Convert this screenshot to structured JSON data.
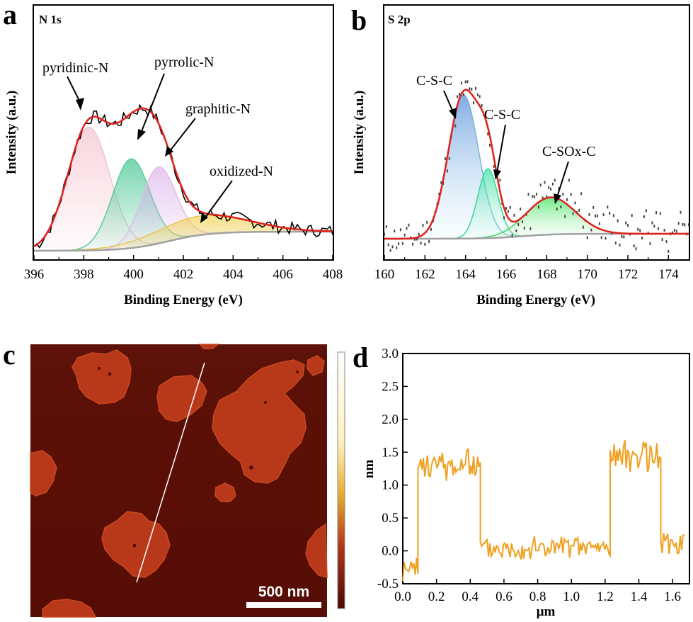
{
  "panels": {
    "a": "a",
    "b": "b",
    "c": "c",
    "d": "d"
  },
  "colors": {
    "fit": "#e0201c",
    "raw": "#000000",
    "pyridinic": "#f2b8c6",
    "pyrrolic": "#3cc48c",
    "graphitic": "#d7a8e8",
    "oxidized": "#f0d050",
    "baseline": "#a0a0a0",
    "s_css1": "#6aa6e0",
    "s_css2": "#3fe0a0",
    "s_csox": "#3fe060",
    "profile": "#f0a020",
    "afm_bg": "#5a0f06",
    "afm_island": "#b8381a"
  },
  "chart_data": [
    {
      "id": "a",
      "type": "line",
      "title": "N 1s",
      "xlabel": "Binding Energy (eV)",
      "ylabel": "Intensity (a.u.)",
      "xlim": [
        396,
        408
      ],
      "ylim": [
        0,
        1
      ],
      "xticks": [
        "396",
        "398",
        "400",
        "402",
        "404",
        "406",
        "408"
      ],
      "series": [
        {
          "name": "pyridinic-N",
          "center": 398.2,
          "amplitude": 0.58,
          "width": 0.85
        },
        {
          "name": "pyrrolic-N",
          "center": 399.9,
          "amplitude": 0.42,
          "width": 0.75
        },
        {
          "name": "graphitic-N",
          "center": 401.0,
          "amplitude": 0.36,
          "width": 0.7
        },
        {
          "name": "oxidized-N",
          "center": 402.7,
          "amplitude": 0.09,
          "width": 1.9
        }
      ],
      "baseline": {
        "start": 0.02,
        "end": 0.11
      },
      "annotations": [
        "pyridinic-N",
        "pyrrolic-N",
        "graphitic-N",
        "oxidized-N"
      ]
    },
    {
      "id": "b",
      "type": "line",
      "title": "S 2p",
      "xlabel": "Binding Energy (eV)",
      "ylabel": "Intensity (a.u.)",
      "xlim": [
        160,
        175
      ],
      "ylim": [
        0,
        1
      ],
      "xticks": [
        "160",
        "162",
        "164",
        "166",
        "168",
        "170",
        "172",
        "174"
      ],
      "series": [
        {
          "name": "C-S-C",
          "center": 163.9,
          "amplitude": 0.58,
          "width": 0.75
        },
        {
          "name": "C-S-C",
          "center": 165.1,
          "amplitude": 0.28,
          "width": 0.5
        },
        {
          "name": "C-SOx-C",
          "center": 168.2,
          "amplitude": 0.15,
          "width": 1.2
        }
      ],
      "baseline": {
        "start": 0.06,
        "end": 0.08
      },
      "annotations": [
        "C-S-C",
        "C-S-C",
        "C-SOx-C"
      ]
    },
    {
      "id": "d",
      "type": "line",
      "xlabel": "μm",
      "ylabel": "nm",
      "xlim": [
        0.0,
        1.7
      ],
      "ylim": [
        -0.5,
        3.0
      ],
      "xticks": [
        "0.0",
        "0.2",
        "0.4",
        "0.6",
        "0.8",
        "1.0",
        "1.2",
        "1.4",
        "1.6"
      ],
      "yticks": [
        "-0.5",
        "0.0",
        "0.5",
        "1.0",
        "1.5",
        "2.0",
        "2.5",
        "3.0"
      ],
      "segments": [
        {
          "x_start": 0.0,
          "x_end": 0.09,
          "level": -0.3
        },
        {
          "x_start": 0.09,
          "x_end": 0.46,
          "level": 1.3
        },
        {
          "x_start": 0.46,
          "x_end": 1.23,
          "level": 0.05
        },
        {
          "x_start": 1.23,
          "x_end": 1.53,
          "level": 1.45
        },
        {
          "x_start": 1.53,
          "x_end": 1.67,
          "level": 0.1
        }
      ]
    }
  ],
  "afm": {
    "scale_bar_label": "500 nm"
  }
}
